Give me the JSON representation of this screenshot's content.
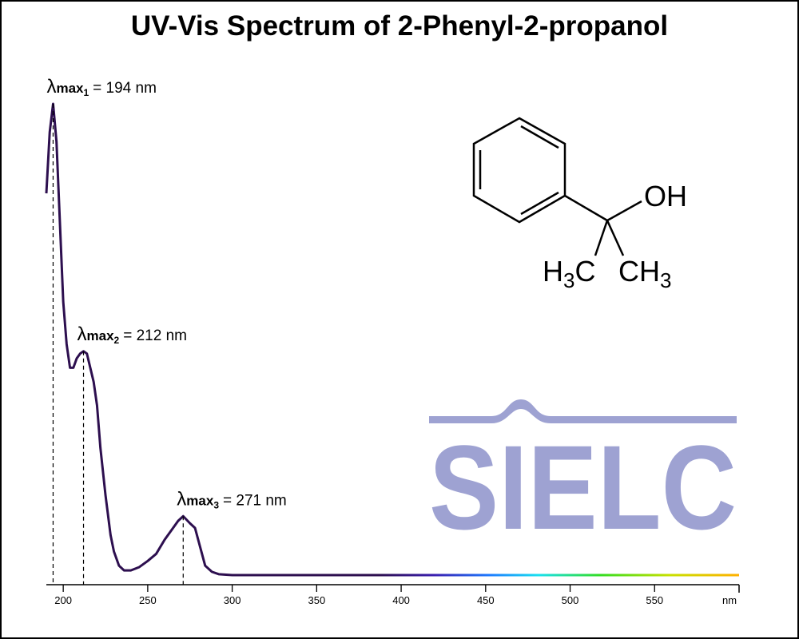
{
  "chart_data": {
    "type": "line",
    "title": "UV-Vis Spectrum of 2-Phenyl-2-propanol",
    "xlabel": "nm",
    "x": [
      190,
      192,
      194,
      196,
      198,
      200,
      202,
      204,
      206,
      208,
      210,
      212,
      214,
      216,
      218,
      220,
      222,
      225,
      228,
      230,
      233,
      236,
      240,
      245,
      250,
      255,
      260,
      265,
      268,
      271,
      275,
      278,
      281,
      284,
      288,
      292,
      300,
      350,
      400,
      450,
      500,
      550,
      600
    ],
    "series": [
      {
        "color": "#2d0f4f",
        "values": [
          0.81,
          0.94,
          1.0,
          0.92,
          0.75,
          0.58,
          0.49,
          0.44,
          0.44,
          0.46,
          0.47,
          0.475,
          0.47,
          0.44,
          0.41,
          0.36,
          0.27,
          0.17,
          0.085,
          0.05,
          0.02,
          0.01,
          0.01,
          0.017,
          0.03,
          0.045,
          0.075,
          0.1,
          0.115,
          0.125,
          0.11,
          0.1,
          0.06,
          0.02,
          0.007,
          0.002,
          0,
          0,
          0,
          0,
          0,
          0,
          0
        ]
      }
    ],
    "xlim": [
      190,
      600
    ],
    "xticks": [
      200,
      250,
      300,
      350,
      400,
      450,
      500,
      550
    ],
    "ylim": [
      0,
      1
    ],
    "annotations": [
      {
        "symbol": "λ",
        "sub": "max",
        "index": "1",
        "text": "= 194 nm",
        "x": 194,
        "y": 1.0
      },
      {
        "symbol": "λ",
        "sub": "max",
        "index": "2",
        "text": "= 212 nm",
        "x": 212,
        "y": 0.475
      },
      {
        "symbol": "λ",
        "sub": "max",
        "index": "3",
        "text": "= 271 nm",
        "x": 271,
        "y": 0.125
      }
    ]
  },
  "structure": {
    "hydroxyl": "OH",
    "methyl_left": {
      "main": "H",
      "sub": "3",
      "tail": "C"
    },
    "methyl_right": {
      "main": "CH",
      "sub": "3"
    }
  },
  "watermark": "SIELC"
}
